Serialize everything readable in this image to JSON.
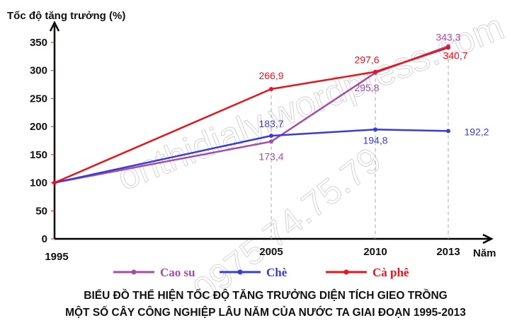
{
  "chart_data": {
    "type": "line",
    "ylabel": "Tốc độ tăng trưởng (%)",
    "xlabel": "Năm",
    "x": [
      "1995",
      "2005",
      "2010",
      "2013"
    ],
    "ylim": [
      0,
      350
    ],
    "yticks": [
      0,
      50,
      100,
      150,
      200,
      250,
      300,
      350
    ],
    "grid": false,
    "legend_position": "bottom",
    "series": [
      {
        "name": "Cao su",
        "color": "#a64ca6",
        "values": [
          100,
          173.4,
          295.8,
          343.3
        ],
        "labels": [
          "",
          "173,4",
          "295,8",
          "343,3"
        ]
      },
      {
        "name": "Chè",
        "color": "#3b3bd6",
        "values": [
          100,
          183.7,
          194.8,
          192.2
        ],
        "labels": [
          "",
          "183,7",
          "194,8",
          "192,2"
        ]
      },
      {
        "name": "Cà phê",
        "color": "#e8141e",
        "values": [
          100,
          266.9,
          297.6,
          340.7
        ],
        "labels": [
          "",
          "266,9",
          "297,6",
          "340,7"
        ]
      }
    ],
    "title_lines": [
      "BIỂU ĐỒ THỂ HIỆN TỐC ĐỘ TĂNG TRƯỞNG DIỆN TÍCH GIEO TRỒNG",
      "MỘT SỐ CÂY CÔNG NGHIỆP LÂU NĂM CỦA NƯỚC TA GIAI ĐOẠN 1995-2013"
    ]
  },
  "watermark": [
    "onthidialy.wordpress.com",
    "0975.74.75.79"
  ]
}
